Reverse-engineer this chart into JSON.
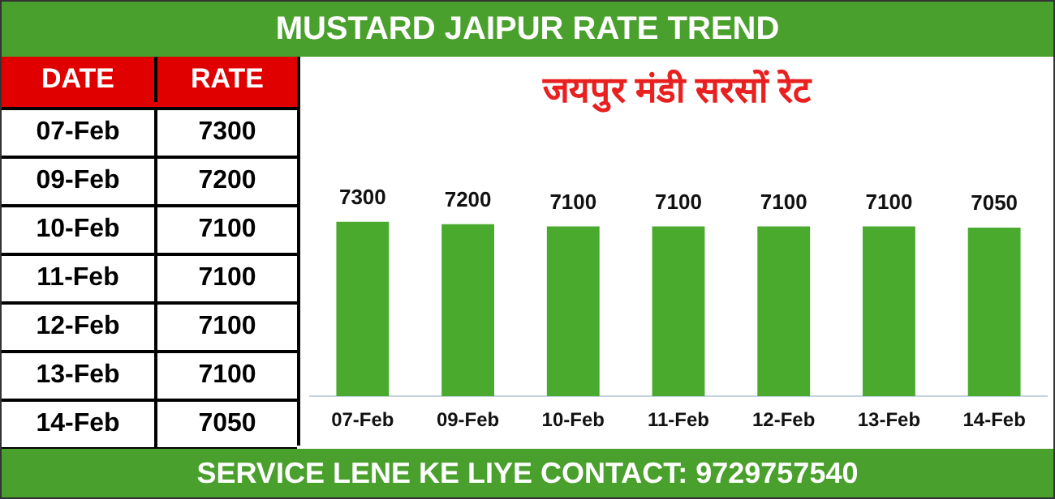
{
  "chart_data": [
    {
      "type": "other",
      "title": "MUSTARD JAIPUR RATE TREND",
      "xlabel": "DATE",
      "ylabel": "RATE",
      "categories": [
        "07-Feb",
        "09-Feb",
        "10-Feb",
        "11-Feb",
        "12-Feb",
        "13-Feb",
        "14-Feb"
      ],
      "values": [
        7300,
        7200,
        7100,
        7100,
        7100,
        7100,
        7050
      ],
      "data_labels": true
    },
    {
      "type": "bar",
      "subtitle": "जयपुर मंडी सरसों रेट",
      "categories": [
        "07-Feb",
        "09-Feb",
        "10-Feb",
        "11-Feb",
        "12-Feb",
        "13-Feb",
        "14-Feb"
      ],
      "values": [
        7300,
        7200,
        7100,
        7100,
        7100,
        7100,
        7050
      ],
      "color": "#4aaa2e",
      "data_labels": true,
      "grid": false,
      "legend": false,
      "tick_labels": "x",
      "annotations": [
        "SERVICE LENE KE LIYE CONTACT: 9729757540"
      ]
    }
  ]
}
